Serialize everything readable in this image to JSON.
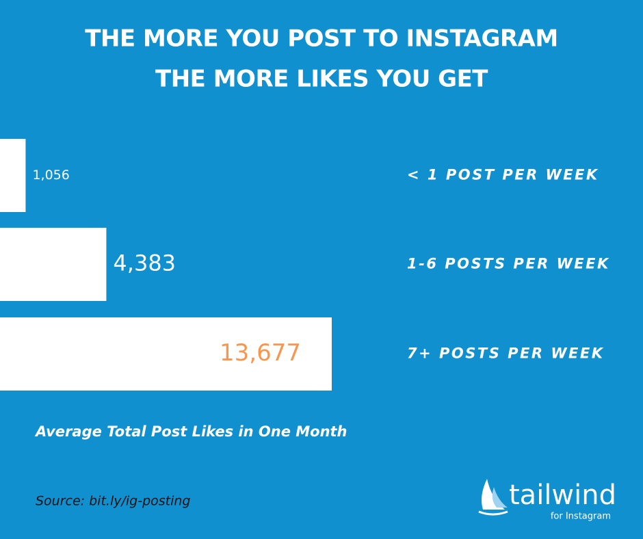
{
  "chart_data": {
    "type": "bar",
    "orientation": "horizontal",
    "title": [
      "THE MORE YOU POST TO INSTAGRAM",
      "THE MORE LIKES YOU GET"
    ],
    "categories": [
      "< 1 POST PER WEEK",
      "1-6 POSTS PER WEEK",
      "7+ POSTS PER WEEK"
    ],
    "values": [
      1056,
      4383,
      13677
    ],
    "value_labels": [
      "1,056",
      "4,383",
      "13,677"
    ],
    "value_label_colors": [
      "#ffffff",
      "#ffffff",
      "#f7964f"
    ],
    "color": "#ffffff",
    "x_label": "Average Total Post Likes in One Month",
    "source": "Source: bit.ly/ig-posting",
    "logo": {
      "name": "tailwind",
      "sub": "for Instagram"
    }
  }
}
